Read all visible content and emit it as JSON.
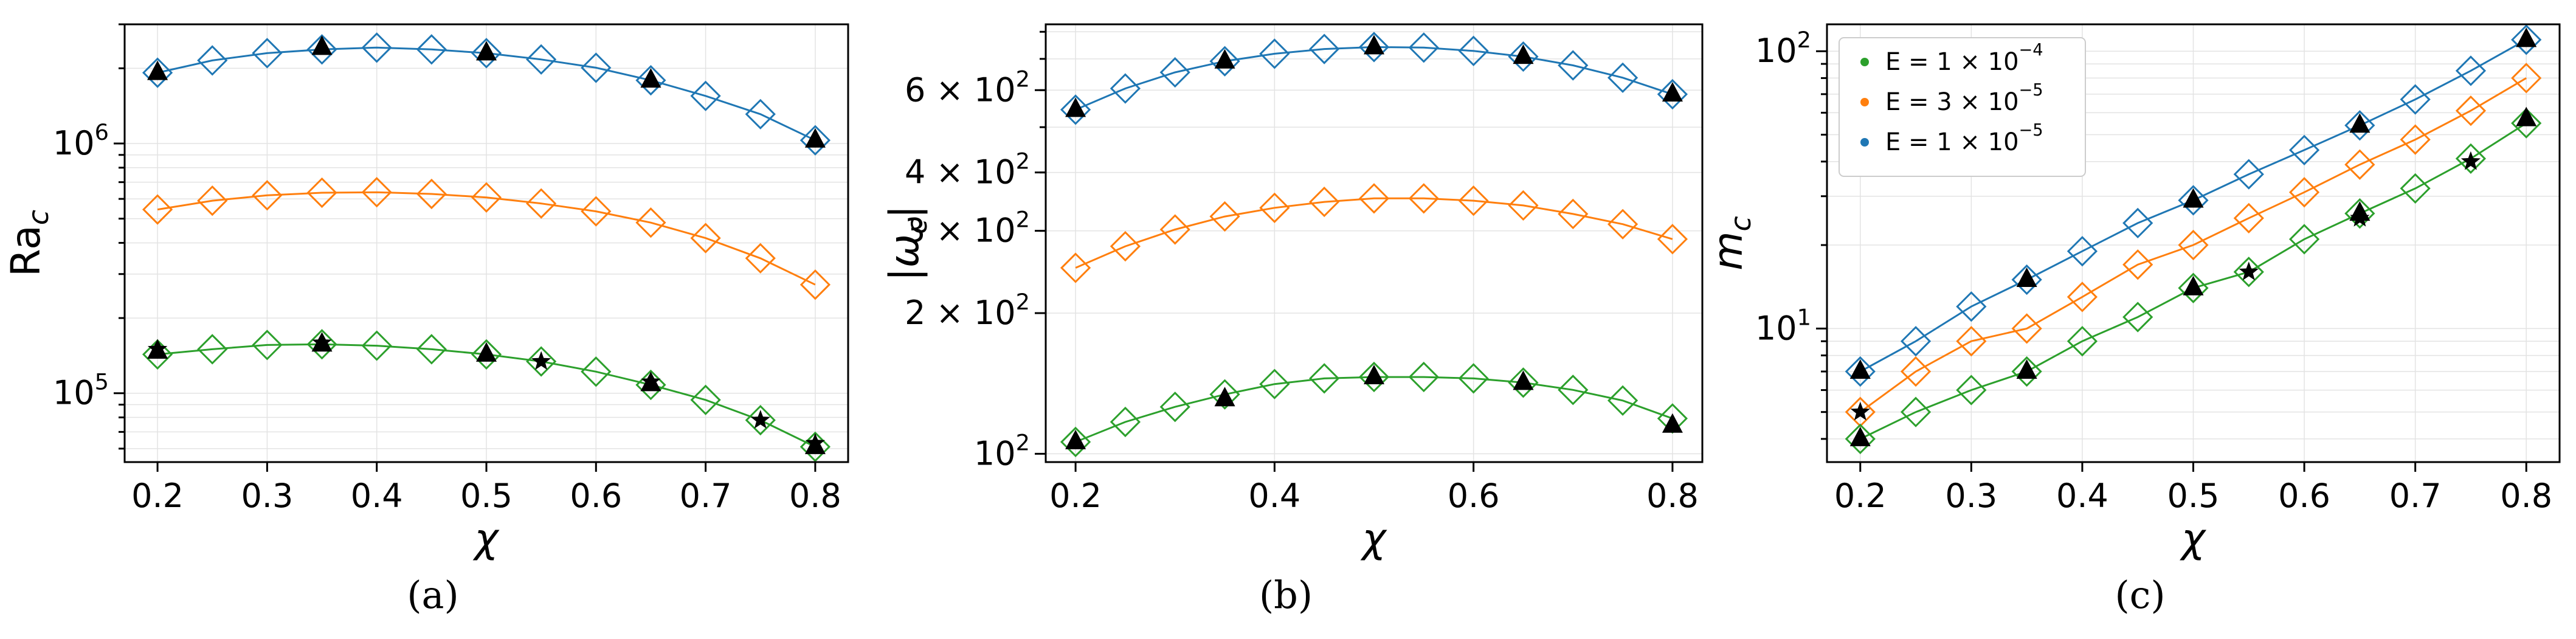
{
  "colors": {
    "green": "#2ca02c",
    "orange": "#ff7f0e",
    "blue": "#1f77b4",
    "ref": "#000000"
  },
  "legend": [
    {
      "name": "green",
      "label": "E = 1 × 10",
      "exp": "−4"
    },
    {
      "name": "orange",
      "label": "E = 3 × 10",
      "exp": "−5"
    },
    {
      "name": "blue",
      "label": "E = 1 × 10",
      "exp": "−5"
    }
  ],
  "chart_data": [
    {
      "id": "a",
      "panel_label": "(a)",
      "type": "line",
      "xlabel": "χ",
      "ylabel": {
        "base": "Ra",
        "sub": "c"
      },
      "yscale": "log",
      "xlim": [
        0.17,
        0.83
      ],
      "ylim": [
        53000,
        3000000
      ],
      "xticks": [
        0.2,
        0.3,
        0.4,
        0.5,
        0.6,
        0.7,
        0.8
      ],
      "xtick_labels": [
        "0.2",
        "0.3",
        "0.4",
        "0.5",
        "0.6",
        "0.7",
        "0.8"
      ],
      "yticks": [
        {
          "value": 100000,
          "base": "10",
          "exp": "5"
        },
        {
          "value": 1000000,
          "base": "10",
          "exp": "6"
        }
      ],
      "series": [
        {
          "name": "E = 1e-5",
          "color": "blue",
          "x": [
            0.2,
            0.25,
            0.3,
            0.35,
            0.4,
            0.45,
            0.5,
            0.55,
            0.6,
            0.65,
            0.7,
            0.75,
            0.8
          ],
          "values": [
            1920000,
            2150000,
            2300000,
            2380000,
            2420000,
            2380000,
            2300000,
            2170000,
            2010000,
            1790000,
            1550000,
            1310000,
            1030000
          ],
          "ref": [
            {
              "x": 0.2,
              "y": 1920000,
              "marker": "triangle"
            },
            {
              "x": 0.35,
              "y": 2420000,
              "marker": "triangle"
            },
            {
              "x": 0.5,
              "y": 2300000,
              "marker": "triangle"
            },
            {
              "x": 0.65,
              "y": 1790000,
              "marker": "triangle"
            },
            {
              "x": 0.8,
              "y": 1030000,
              "marker": "triangle"
            }
          ]
        },
        {
          "name": "E = 3e-5",
          "color": "orange",
          "x": [
            0.2,
            0.25,
            0.3,
            0.35,
            0.4,
            0.45,
            0.5,
            0.55,
            0.6,
            0.65,
            0.7,
            0.75,
            0.8
          ],
          "values": [
            544000,
            590000,
            620000,
            635000,
            638000,
            628000,
            608000,
            575000,
            535000,
            482000,
            418000,
            347000,
            272000
          ],
          "ref": []
        },
        {
          "name": "E = 1e-4",
          "color": "green",
          "x": [
            0.2,
            0.25,
            0.3,
            0.35,
            0.4,
            0.45,
            0.5,
            0.55,
            0.6,
            0.65,
            0.7,
            0.75,
            0.8
          ],
          "values": [
            143000,
            150000,
            156000,
            157000,
            155000,
            150000,
            143000,
            134000,
            122000,
            108000,
            94000,
            78000,
            61000
          ],
          "ref": [
            {
              "x": 0.2,
              "y": 147000,
              "marker": "triangle"
            },
            {
              "x": 0.2,
              "y": 150000,
              "marker": "star"
            },
            {
              "x": 0.35,
              "y": 157000,
              "marker": "triangle"
            },
            {
              "x": 0.35,
              "y": 159000,
              "marker": "star"
            },
            {
              "x": 0.5,
              "y": 143000,
              "marker": "triangle"
            },
            {
              "x": 0.55,
              "y": 134000,
              "marker": "star"
            },
            {
              "x": 0.65,
              "y": 109000,
              "marker": "triangle"
            },
            {
              "x": 0.65,
              "y": 111000,
              "marker": "star"
            },
            {
              "x": 0.75,
              "y": 78000,
              "marker": "star"
            },
            {
              "x": 0.8,
              "y": 61000,
              "marker": "triangle"
            },
            {
              "x": 0.8,
              "y": 63000,
              "marker": "star"
            }
          ]
        }
      ]
    },
    {
      "id": "b",
      "panel_label": "(b)",
      "type": "line",
      "xlabel": "χ",
      "ylabel": {
        "text": "|ω",
        "sub": "c",
        "suffix": "|"
      },
      "yscale": "log",
      "xlim": [
        0.17,
        0.83
      ],
      "ylim": [
        96,
        830
      ],
      "xticks": [
        0.2,
        0.4,
        0.6,
        0.8
      ],
      "xtick_labels": [
        "0.2",
        "0.4",
        "0.6",
        "0.8"
      ],
      "yticks": [
        {
          "value": 100,
          "base": "10",
          "exp": "2"
        },
        {
          "value": 200,
          "base": "2 × 10",
          "exp": "2"
        },
        {
          "value": 300,
          "base": "3 × 10",
          "exp": "2"
        },
        {
          "value": 400,
          "base": "4 × 10",
          "exp": "2"
        },
        {
          "value": 600,
          "base": "6 × 10",
          "exp": "2"
        }
      ],
      "series": [
        {
          "name": "E = 1e-5",
          "color": "blue",
          "x": [
            0.2,
            0.25,
            0.3,
            0.35,
            0.4,
            0.45,
            0.5,
            0.55,
            0.6,
            0.65,
            0.7,
            0.75,
            0.8
          ],
          "values": [
            545,
            605,
            655,
            692,
            718,
            735,
            742,
            740,
            728,
            708,
            678,
            638,
            588
          ],
          "ref": [
            {
              "x": 0.2,
              "y": 545,
              "marker": "triangle"
            },
            {
              "x": 0.35,
              "y": 692,
              "marker": "triangle"
            },
            {
              "x": 0.5,
              "y": 742,
              "marker": "triangle"
            },
            {
              "x": 0.65,
              "y": 708,
              "marker": "triangle"
            },
            {
              "x": 0.8,
              "y": 588,
              "marker": "triangle"
            }
          ]
        },
        {
          "name": "E = 3e-5",
          "color": "orange",
          "x": [
            0.2,
            0.25,
            0.3,
            0.35,
            0.4,
            0.45,
            0.5,
            0.55,
            0.6,
            0.65,
            0.7,
            0.75,
            0.8
          ],
          "values": [
            250,
            278,
            302,
            322,
            336,
            346,
            352,
            352,
            348,
            340,
            326,
            310,
            288
          ],
          "ref": []
        },
        {
          "name": "E = 1e-4",
          "color": "green",
          "x": [
            0.2,
            0.25,
            0.3,
            0.35,
            0.4,
            0.45,
            0.5,
            0.55,
            0.6,
            0.65,
            0.7,
            0.75,
            0.8
          ],
          "values": [
            106,
            117,
            126,
            134,
            141,
            145,
            146,
            146,
            145,
            142,
            137,
            130,
            119
          ],
          "ref": [
            {
              "x": 0.2,
              "y": 106,
              "marker": "triangle"
            },
            {
              "x": 0.35,
              "y": 131,
              "marker": "triangle"
            },
            {
              "x": 0.5,
              "y": 146,
              "marker": "triangle"
            },
            {
              "x": 0.65,
              "y": 142,
              "marker": "triangle"
            },
            {
              "x": 0.8,
              "y": 115,
              "marker": "triangle"
            }
          ]
        }
      ]
    },
    {
      "id": "c",
      "panel_label": "(c)",
      "type": "line",
      "xlabel": "χ",
      "ylabel": {
        "base": "m",
        "sub": "c"
      },
      "yscale": "log",
      "xlim": [
        0.17,
        0.83
      ],
      "ylim": [
        3.3,
        125
      ],
      "xticks": [
        0.2,
        0.3,
        0.4,
        0.5,
        0.6,
        0.7,
        0.8
      ],
      "xtick_labels": [
        "0.2",
        "0.3",
        "0.4",
        "0.5",
        "0.6",
        "0.7",
        "0.8"
      ],
      "yticks": [
        {
          "value": 10,
          "base": "10",
          "exp": "1"
        },
        {
          "value": 100,
          "base": "10",
          "exp": "2"
        }
      ],
      "legend_position": "top-left",
      "series": [
        {
          "name": "E = 1e-5",
          "color": "blue",
          "x": [
            0.2,
            0.25,
            0.3,
            0.35,
            0.4,
            0.45,
            0.5,
            0.55,
            0.6,
            0.65,
            0.7,
            0.75,
            0.8
          ],
          "values": [
            7,
            9,
            12,
            15,
            19,
            24,
            29,
            36,
            44,
            54,
            67,
            85,
            110
          ],
          "ref": [
            {
              "x": 0.2,
              "y": 7,
              "marker": "triangle"
            },
            {
              "x": 0.35,
              "y": 15,
              "marker": "triangle"
            },
            {
              "x": 0.5,
              "y": 29,
              "marker": "triangle"
            },
            {
              "x": 0.65,
              "y": 54,
              "marker": "triangle"
            },
            {
              "x": 0.8,
              "y": 110,
              "marker": "triangle"
            }
          ]
        },
        {
          "name": "E = 3e-5",
          "color": "orange",
          "x": [
            0.2,
            0.25,
            0.3,
            0.35,
            0.4,
            0.45,
            0.5,
            0.55,
            0.6,
            0.65,
            0.7,
            0.75,
            0.8
          ],
          "values": [
            5,
            7,
            9,
            10,
            13,
            17,
            20,
            25,
            31,
            39,
            48,
            61,
            80
          ],
          "ref": [
            {
              "x": 0.2,
              "y": 5,
              "marker": "star"
            }
          ]
        },
        {
          "name": "E = 1e-4",
          "color": "green",
          "x": [
            0.2,
            0.25,
            0.3,
            0.35,
            0.4,
            0.45,
            0.5,
            0.55,
            0.6,
            0.65,
            0.7,
            0.75,
            0.8
          ],
          "values": [
            4,
            5,
            6,
            7,
            9,
            11,
            14,
            16,
            21,
            26,
            32,
            41,
            55
          ],
          "ref": [
            {
              "x": 0.2,
              "y": 4,
              "marker": "triangle"
            },
            {
              "x": 0.35,
              "y": 7,
              "marker": "triangle"
            },
            {
              "x": 0.5,
              "y": 14,
              "marker": "triangle"
            },
            {
              "x": 0.55,
              "y": 16,
              "marker": "star"
            },
            {
              "x": 0.65,
              "y": 26,
              "marker": "triangle"
            },
            {
              "x": 0.65,
              "y": 25,
              "marker": "star"
            },
            {
              "x": 0.75,
              "y": 40,
              "marker": "star"
            },
            {
              "x": 0.8,
              "y": 57,
              "marker": "triangle"
            }
          ]
        }
      ]
    }
  ]
}
